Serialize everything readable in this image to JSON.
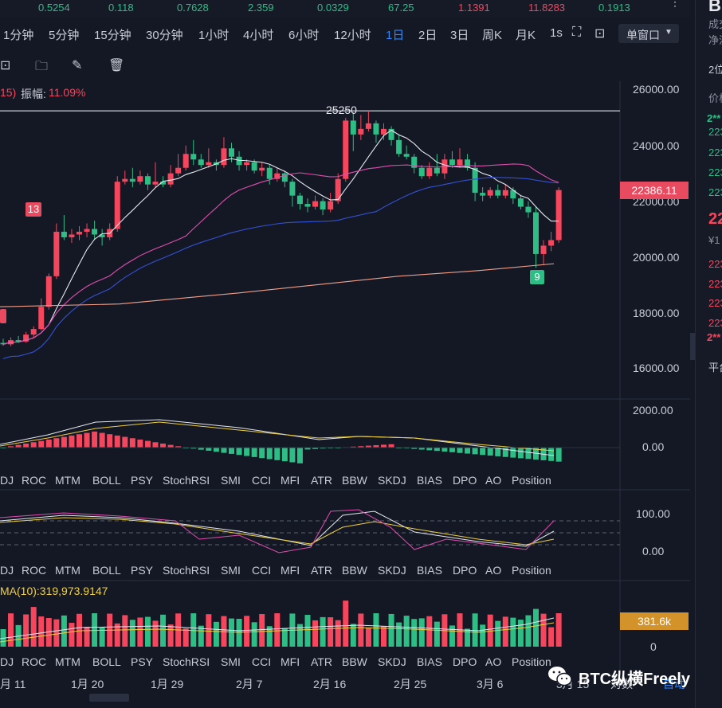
{
  "ticker": {
    "values": [
      "0.5254",
      "0.118",
      "0.7628",
      "2.359",
      "0.0329",
      "67.25",
      "1.1391",
      "11.8283",
      "0.1913"
    ],
    "colors": [
      "#2ebd85",
      "#2ebd85",
      "#2ebd85",
      "#2ebd85",
      "#2ebd85",
      "#2ebd85",
      "#f6465d",
      "#f6465d",
      "#2ebd85"
    ]
  },
  "timeframes": [
    "1分钟",
    "5分钟",
    "15分钟",
    "30分钟",
    "1小时",
    "4小时",
    "6小时",
    "12小时",
    "1日",
    "2日",
    "3日",
    "周K",
    "月K",
    "1s"
  ],
  "active_timeframe": "1日",
  "window_mode": "单窗口",
  "main": {
    "amp_prefix": "15)",
    "amp_label": "振幅:",
    "amp_value": "11.09%",
    "high_label": "25250",
    "current_price": "22386.11",
    "axis": [
      "26000.00",
      "24000.00",
      "22000.00",
      "20000.00",
      "18000.00",
      "16000.00"
    ],
    "badges": [
      "13",
      "9"
    ]
  },
  "macd": {
    "axis": [
      "2000.00",
      "0.00"
    ]
  },
  "kdj": {
    "axis": [
      "100.00",
      "0.00"
    ]
  },
  "volume": {
    "ma_label": "MA(10):319,973.9147",
    "current": "381.6k",
    "axis": [
      "0"
    ]
  },
  "indicators": [
    "DJ",
    "ROC",
    "MTM",
    "BOLL",
    "PSY",
    "StochRSI",
    "SMI",
    "CCI",
    "MFI",
    "ATR",
    "BBW",
    "SKDJ",
    "BIAS",
    "DPO",
    "AO",
    "Position"
  ],
  "dates": [
    "月 11",
    "1月 20",
    "1月 29",
    "2月 7",
    "2月 16",
    "2月 25",
    "3月 6",
    "3月 15"
  ],
  "bottom_right": [
    "对数",
    "自动"
  ],
  "watermark": "BTC纵横Freely",
  "right_panel": {
    "title": "B",
    "lines": [
      "成交",
      "净流",
      "2位",
      "价格",
      "2**",
      "223",
      "223",
      "223",
      "223",
      "22",
      "¥1",
      "223",
      "223",
      "223",
      "223",
      "2**",
      "平台"
    ]
  },
  "colors": {
    "up": "#f6465d",
    "down": "#2ebd85",
    "accent": "#2f86ff",
    "bg": "#141824"
  }
}
